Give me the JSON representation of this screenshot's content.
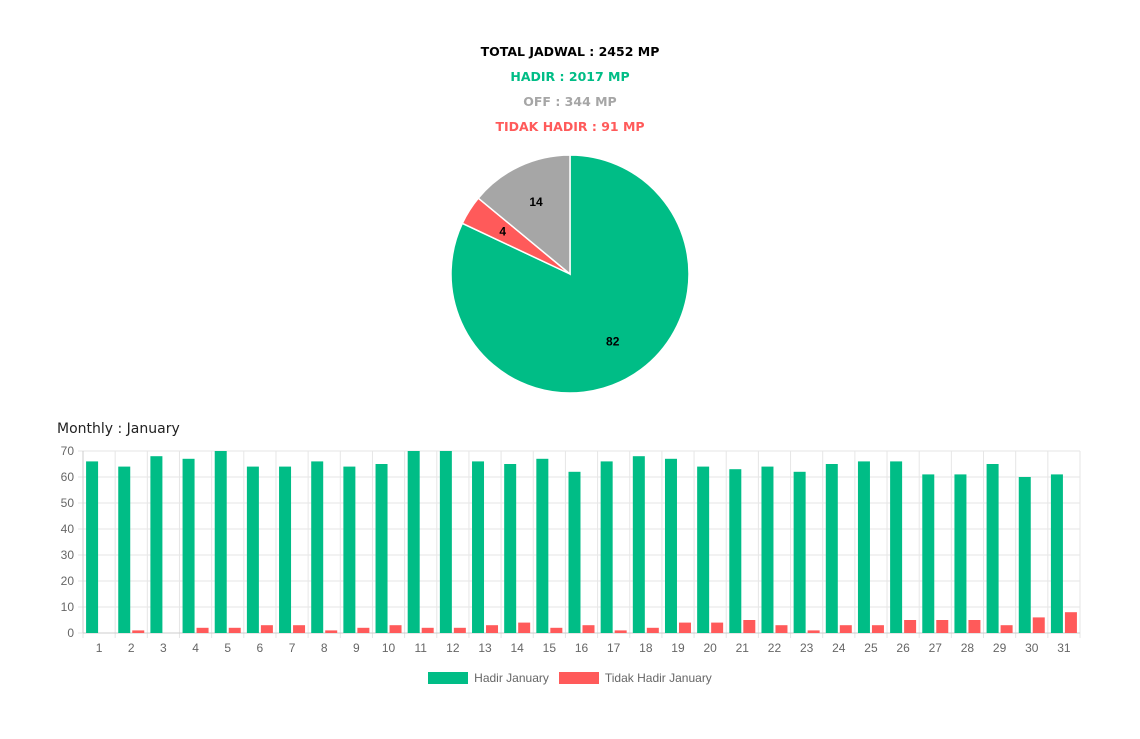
{
  "summary": {
    "total": "TOTAL JADWAL : 2452 MP",
    "hadir": "HADIR : 2017 MP",
    "off": "OFF : 344 MP",
    "tidak_hadir": "TIDAK HADIR : 91 MP"
  },
  "colors": {
    "hadir": "#00bd86",
    "off": "#a6a6a6",
    "tidak_hadir": "#ff5a5a"
  },
  "monthly_title": "Monthly : January",
  "chart_data": [
    {
      "type": "pie",
      "slices": [
        {
          "key": "hadir",
          "value": 82,
          "label": "82"
        },
        {
          "key": "tidak_hadir",
          "value": 4,
          "label": "4"
        },
        {
          "key": "off",
          "value": 14,
          "label": "14"
        }
      ]
    },
    {
      "type": "bar",
      "categories": [
        "1",
        "2",
        "3",
        "4",
        "5",
        "6",
        "7",
        "8",
        "9",
        "10",
        "11",
        "12",
        "13",
        "14",
        "15",
        "16",
        "17",
        "18",
        "19",
        "20",
        "21",
        "22",
        "23",
        "24",
        "25",
        "26",
        "27",
        "28",
        "29",
        "30",
        "31"
      ],
      "series": [
        {
          "name": "Hadir January",
          "color": "#00bd86",
          "values": [
            66,
            64,
            68,
            67,
            70,
            64,
            64,
            66,
            64,
            65,
            70,
            70,
            66,
            65,
            67,
            62,
            66,
            68,
            67,
            64,
            63,
            64,
            62,
            65,
            66,
            66,
            61,
            61,
            65,
            60,
            61
          ]
        },
        {
          "name": "Tidak Hadir January",
          "color": "#ff5a5a",
          "values": [
            0,
            1,
            0,
            2,
            2,
            3,
            3,
            1,
            2,
            3,
            2,
            2,
            3,
            4,
            2,
            3,
            1,
            2,
            4,
            4,
            5,
            3,
            1,
            3,
            3,
            5,
            5,
            5,
            3,
            6,
            8
          ]
        }
      ],
      "ylim": [
        0,
        70
      ],
      "yticks": [
        "0",
        "10",
        "20",
        "30",
        "40",
        "50",
        "60",
        "70"
      ],
      "grid": true,
      "legend_position": "bottom"
    }
  ]
}
